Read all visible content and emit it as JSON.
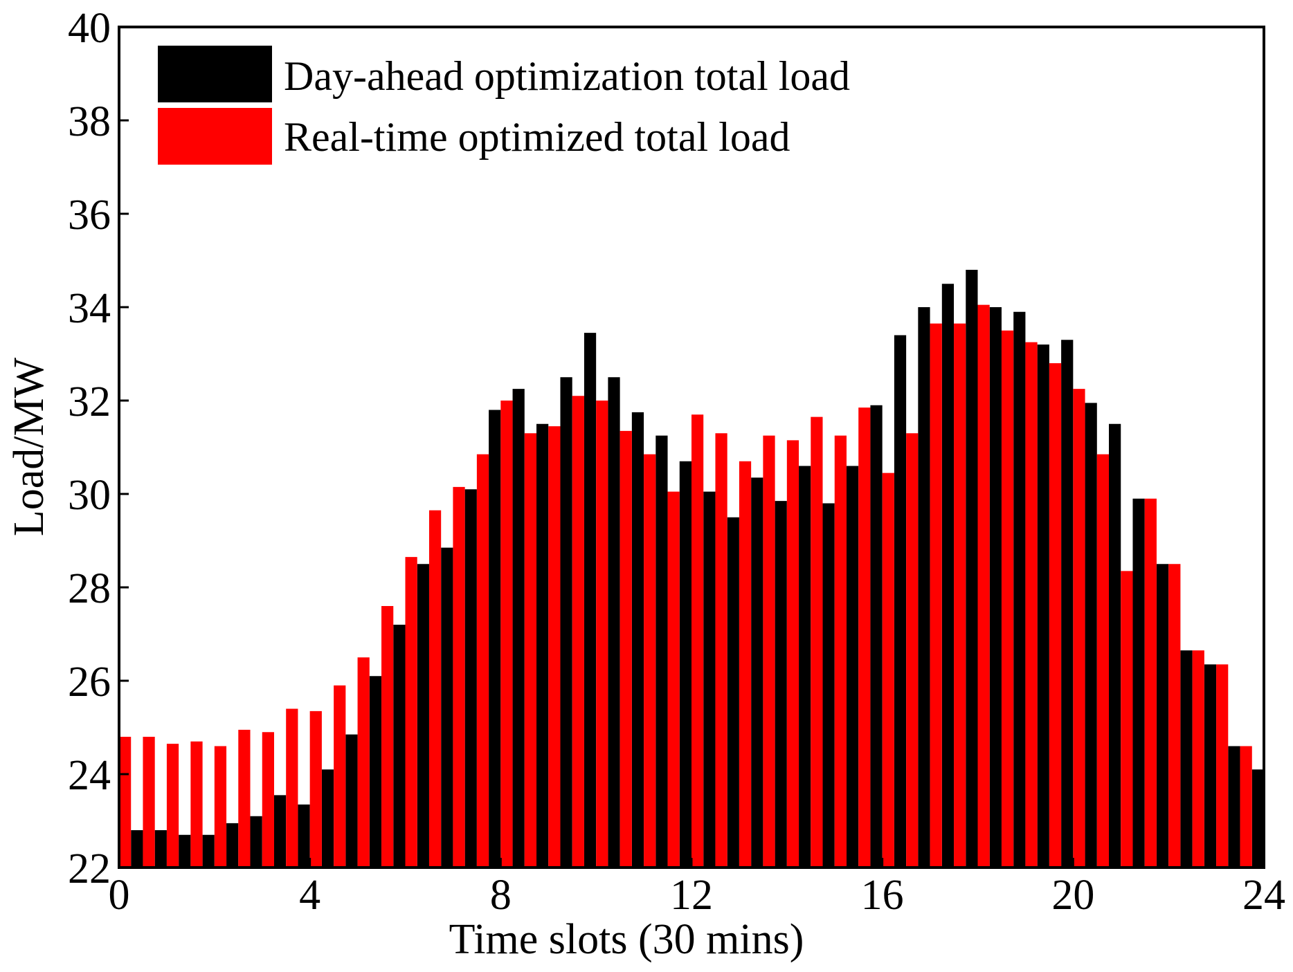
{
  "chart_data": {
    "type": "bar",
    "xlabel": "Time slots (30 mins)",
    "ylabel": "Load/MW",
    "xlim": [
      0,
      24
    ],
    "ylim": [
      22,
      40
    ],
    "x_ticks": [
      "0",
      "4",
      "8",
      "12",
      "16",
      "20",
      "24"
    ],
    "y_ticks": [
      "22",
      "24",
      "26",
      "28",
      "30",
      "32",
      "34",
      "36",
      "38",
      "40"
    ],
    "grid": false,
    "legend_position": "top-left",
    "series": [
      {
        "name": "Day-ahead optimization total load",
        "color": "#000000",
        "values": [
          22.8,
          22.8,
          22.7,
          22.7,
          22.95,
          23.1,
          23.55,
          23.35,
          24.1,
          24.85,
          26.1,
          27.2,
          28.5,
          28.85,
          30.1,
          31.8,
          32.25,
          31.5,
          32.5,
          33.45,
          32.5,
          31.75,
          31.25,
          30.7,
          30.05,
          29.5,
          30.35,
          29.85,
          30.6,
          29.8,
          30.6,
          31.9,
          33.4,
          34.0,
          34.5,
          34.8,
          34.0,
          33.9,
          33.2,
          33.3,
          31.95,
          31.5,
          29.9,
          28.5,
          26.65,
          26.35,
          24.6,
          24.1
        ]
      },
      {
        "name": "Real-time optimized total load",
        "color": "#ff0000",
        "values": [
          24.8,
          24.8,
          24.65,
          24.7,
          24.6,
          24.95,
          24.9,
          25.4,
          25.35,
          25.9,
          26.5,
          27.6,
          28.65,
          29.65,
          30.15,
          30.85,
          32.0,
          31.3,
          31.45,
          32.1,
          32.0,
          31.35,
          30.85,
          30.05,
          31.7,
          31.3,
          30.7,
          31.25,
          31.15,
          31.65,
          31.25,
          31.85,
          30.45,
          31.3,
          33.65,
          33.65,
          34.05,
          33.5,
          33.25,
          32.8,
          32.25,
          30.85,
          28.35,
          29.9,
          28.5,
          26.65,
          26.35,
          24.6
        ]
      }
    ]
  }
}
